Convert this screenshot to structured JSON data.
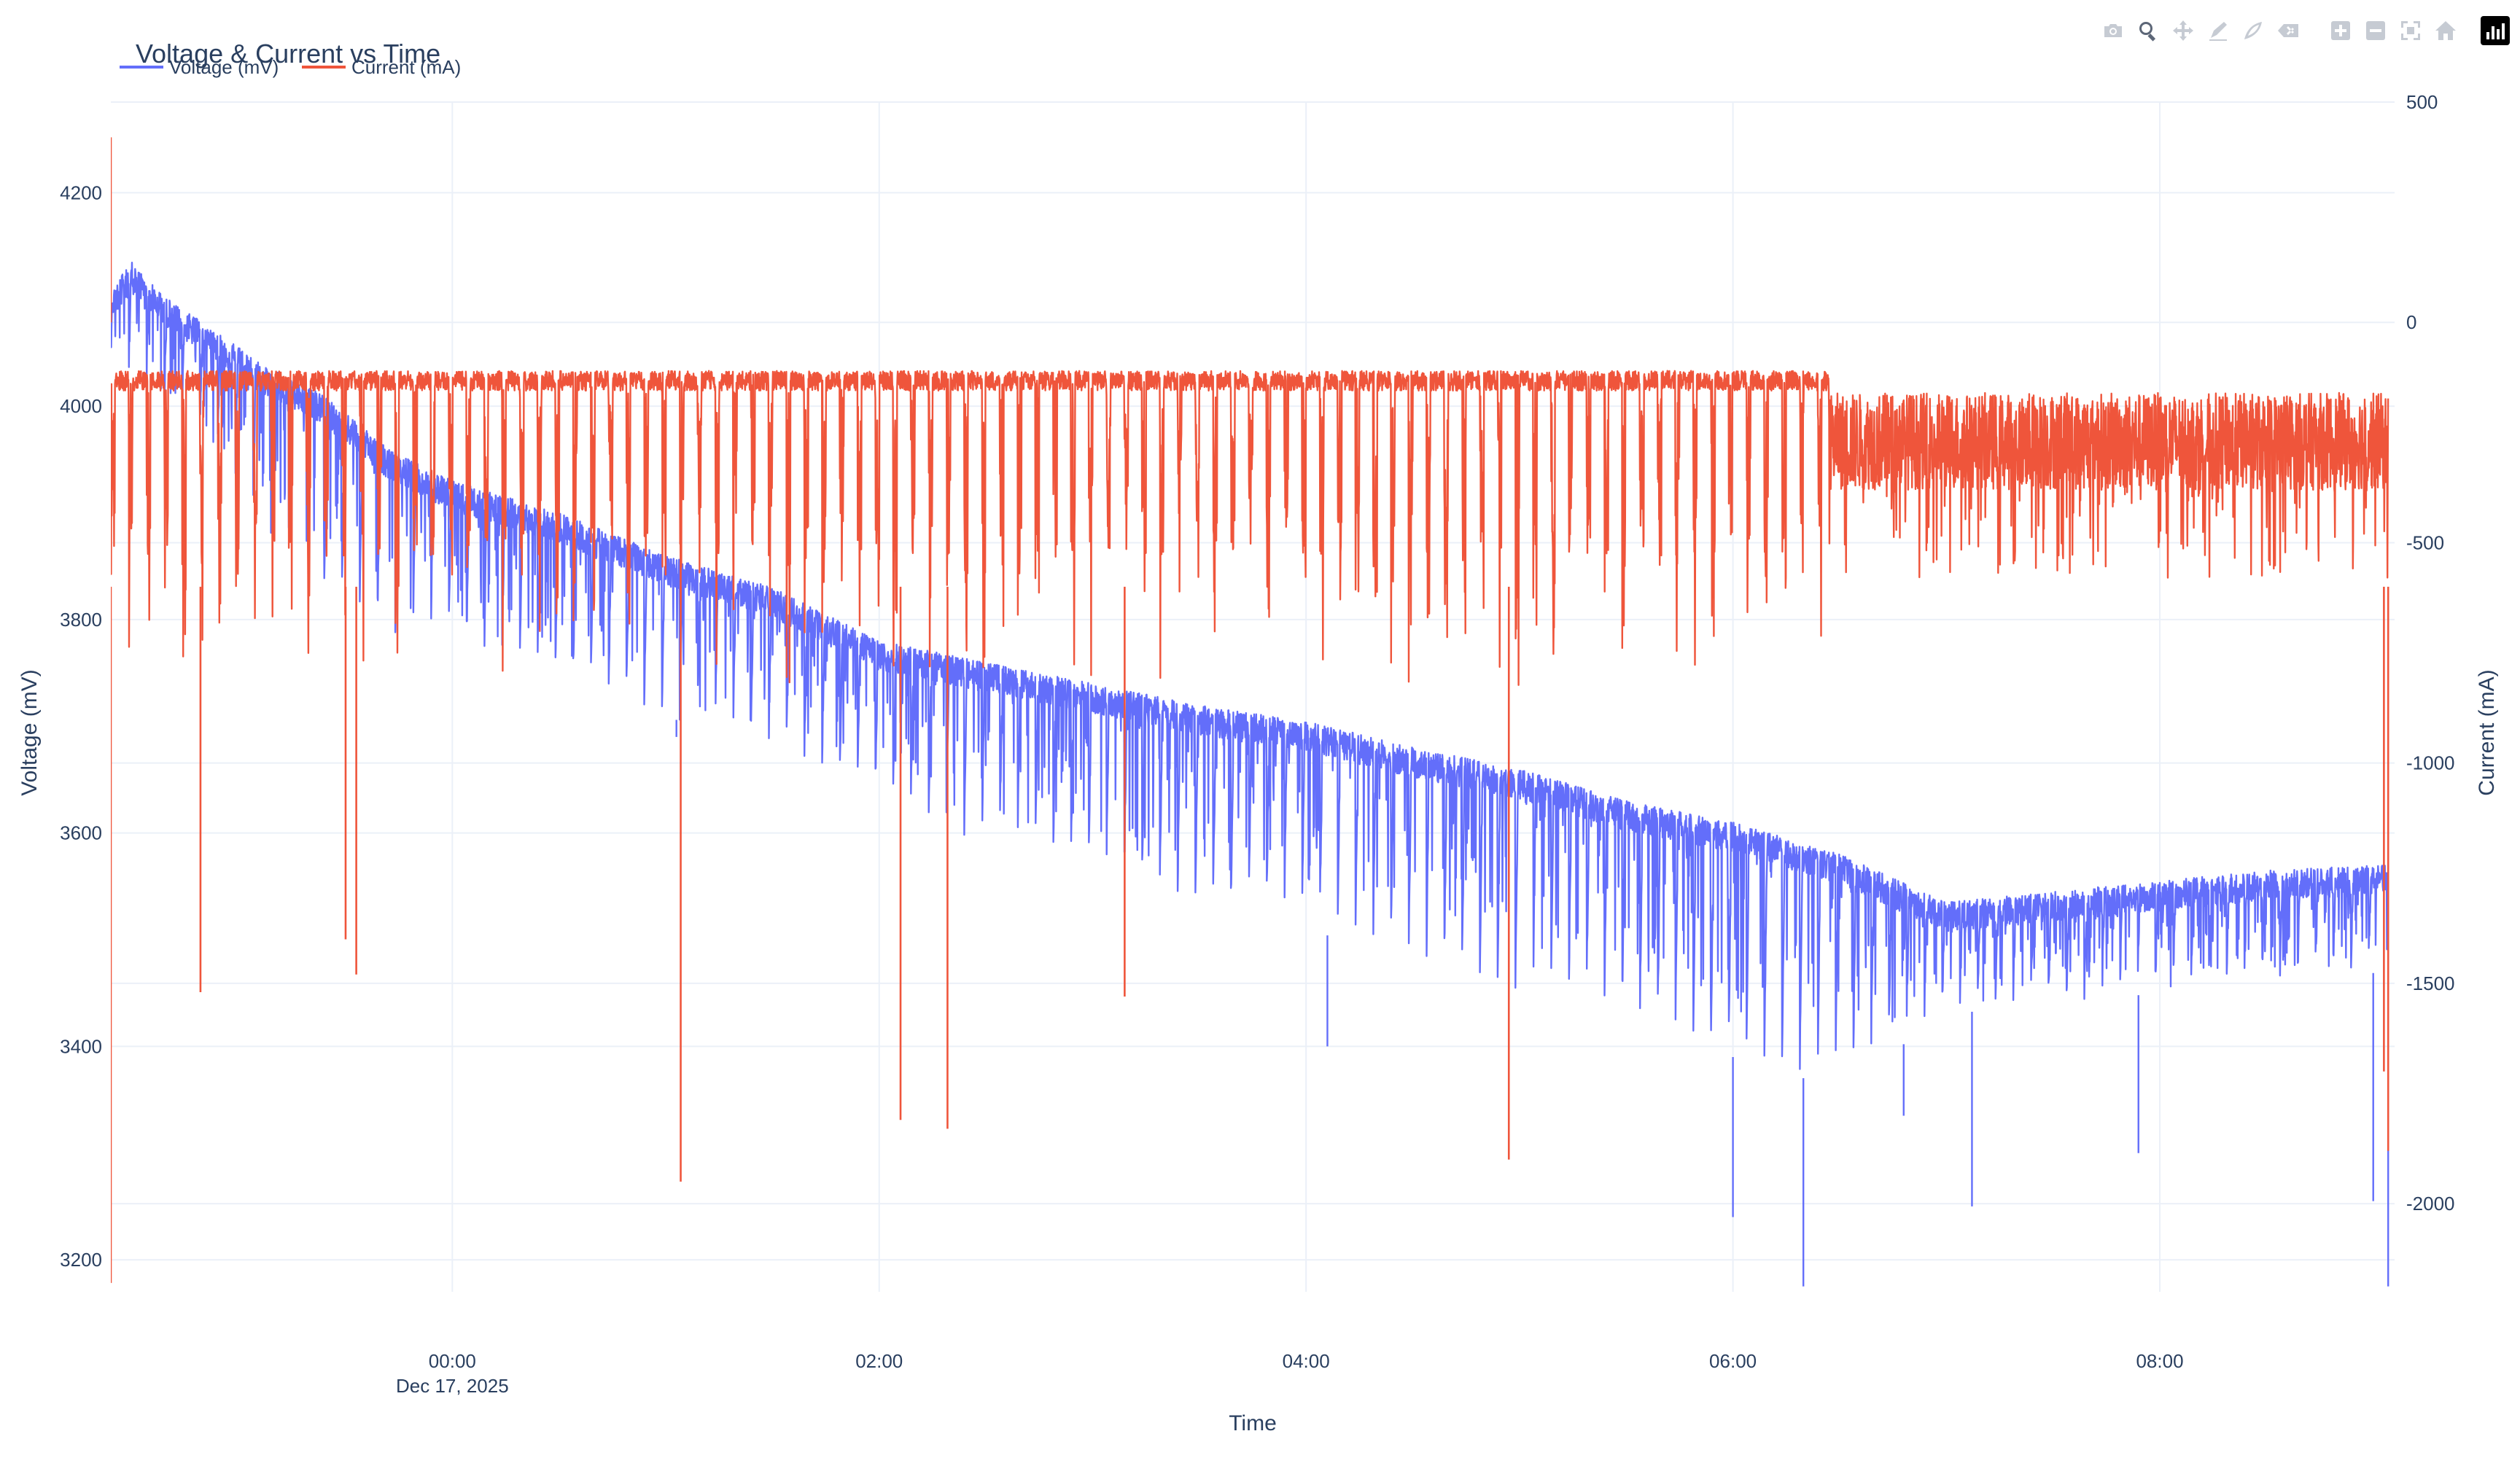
{
  "chart_data": {
    "type": "line",
    "title": "Voltage & Current vs Time",
    "xlabel": "Time",
    "ylabel": "Voltage (mV)",
    "y2label": "Current (mA)",
    "x_range_hours": [
      -1.6,
      9.1
    ],
    "x_ticks": [
      {
        "hour": 0,
        "label": "00:00",
        "sublabel": "Dec 17, 2025"
      },
      {
        "hour": 2,
        "label": "02:00"
      },
      {
        "hour": 4,
        "label": "04:00"
      },
      {
        "hour": 6,
        "label": "06:00"
      },
      {
        "hour": 8,
        "label": "08:00"
      }
    ],
    "y_left_range": [
      3170,
      4285
    ],
    "y_left_ticks": [
      3200,
      3400,
      3600,
      3800,
      4000,
      4200
    ],
    "y_right_range": [
      -2200,
      500
    ],
    "y_right_ticks": [
      500,
      0,
      -500,
      -1000,
      -1500,
      -2000
    ],
    "legend_position": "top-left, horizontal",
    "grid": true,
    "series": [
      {
        "name": "Voltage (mV)",
        "axis": "left",
        "color": "#636efa",
        "envelope_points": [
          {
            "t": -1.6,
            "upper": 4110,
            "lower": 4040
          },
          {
            "t": -1.5,
            "upper": 4135,
            "lower": 4020
          },
          {
            "t": -1.3,
            "upper": 4095,
            "lower": 3980
          },
          {
            "t": -1.1,
            "upper": 4070,
            "lower": 3950
          },
          {
            "t": -0.9,
            "upper": 4040,
            "lower": 3880
          },
          {
            "t": -0.6,
            "upper": 4010,
            "lower": 3830
          },
          {
            "t": -0.3,
            "upper": 3960,
            "lower": 3790
          },
          {
            "t": 0.0,
            "upper": 3930,
            "lower": 3770
          },
          {
            "t": 0.5,
            "upper": 3900,
            "lower": 3740
          },
          {
            "t": 1.0,
            "upper": 3860,
            "lower": 3710
          },
          {
            "t": 1.5,
            "upper": 3830,
            "lower": 3670
          },
          {
            "t": 2.0,
            "upper": 3780,
            "lower": 3630
          },
          {
            "t": 2.5,
            "upper": 3760,
            "lower": 3590
          },
          {
            "t": 3.0,
            "upper": 3740,
            "lower": 3560
          },
          {
            "t": 3.5,
            "upper": 3720,
            "lower": 3530
          },
          {
            "t": 4.0,
            "upper": 3705,
            "lower": 3510
          },
          {
            "t": 4.5,
            "upper": 3680,
            "lower": 3480
          },
          {
            "t": 5.0,
            "upper": 3660,
            "lower": 3450
          },
          {
            "t": 5.5,
            "upper": 3630,
            "lower": 3420
          },
          {
            "t": 6.0,
            "upper": 3610,
            "lower": 3390
          },
          {
            "t": 6.5,
            "upper": 3580,
            "lower": 3360
          },
          {
            "t": 7.0,
            "upper": 3535,
            "lower": 3430
          },
          {
            "t": 7.5,
            "upper": 3545,
            "lower": 3440
          },
          {
            "t": 8.0,
            "upper": 3555,
            "lower": 3450
          },
          {
            "t": 8.5,
            "upper": 3565,
            "lower": 3460
          },
          {
            "t": 9.07,
            "upper": 3570,
            "lower": 3470
          }
        ],
        "notable_dips": [
          {
            "t": 1.05,
            "value": 3690
          },
          {
            "t": 4.1,
            "value": 3400
          },
          {
            "t": 6.0,
            "value": 3240
          },
          {
            "t": 6.33,
            "value": 3175
          },
          {
            "t": 6.8,
            "value": 3335
          },
          {
            "t": 7.12,
            "value": 3250
          },
          {
            "t": 7.9,
            "value": 3300
          },
          {
            "t": 9.0,
            "value": 3255
          },
          {
            "t": 9.07,
            "value": 3175
          }
        ]
      },
      {
        "name": "Current (mA)",
        "axis": "right",
        "color": "#ef553b",
        "upper_level": -110,
        "typical_pulse_floor": -700,
        "dense_band_from_hour": 6.45,
        "dense_band_range": [
          -380,
          -160
        ],
        "notable_spikes": [
          {
            "t": -1.6,
            "value": 420
          },
          {
            "t": -1.6,
            "value": -2180
          },
          {
            "t": -1.18,
            "value": -1520
          },
          {
            "t": -0.5,
            "value": -1400
          },
          {
            "t": -0.45,
            "value": -1480
          },
          {
            "t": 1.07,
            "value": -1950
          },
          {
            "t": 2.1,
            "value": -1810
          },
          {
            "t": 2.32,
            "value": -1830
          },
          {
            "t": 3.15,
            "value": -1530
          },
          {
            "t": 4.95,
            "value": -1900
          },
          {
            "t": 9.05,
            "value": -1700
          },
          {
            "t": 9.07,
            "value": -1880
          }
        ]
      }
    ]
  },
  "modebar": {
    "buttons": [
      "camera-icon",
      "zoom-icon",
      "pan-icon",
      "draw-open-icon",
      "draw-closed-icon",
      "erase-icon",
      "zoom-in-icon",
      "zoom-out-icon",
      "autoscale-icon",
      "home-icon"
    ],
    "active": "zoom-icon"
  }
}
